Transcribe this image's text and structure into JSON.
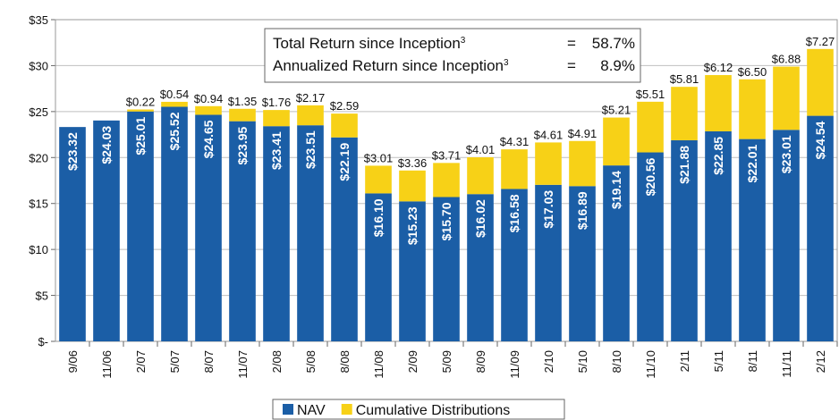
{
  "chart_data": {
    "type": "stacked-bar",
    "categories": [
      "9/06",
      "11/06",
      "2/07",
      "5/07",
      "8/07",
      "11/07",
      "2/08",
      "5/08",
      "8/08",
      "11/08",
      "2/09",
      "5/09",
      "8/09",
      "11/09",
      "2/10",
      "5/10",
      "8/10",
      "11/10",
      "2/11",
      "5/11",
      "8/11",
      "11/11",
      "2/12"
    ],
    "series": [
      {
        "name": "NAV",
        "color": "#1b5ea6",
        "values": [
          23.32,
          24.03,
          25.01,
          25.52,
          24.65,
          23.95,
          23.41,
          23.51,
          22.19,
          16.1,
          15.23,
          15.7,
          16.02,
          16.58,
          17.03,
          16.89,
          19.14,
          20.56,
          21.88,
          22.85,
          22.01,
          23.01,
          24.54
        ],
        "value_labels": [
          "$23.32",
          "$24.03",
          "$25.01",
          "$25.52",
          "$24.65",
          "$23.95",
          "$23.41",
          "$23.51",
          "$22.19",
          "$16.10",
          "$15.23",
          "$15.70",
          "$16.02",
          "$16.58",
          "$17.03",
          "$16.89",
          "$19.14",
          "$20.56",
          "$21.88",
          "$22.85",
          "$22.01",
          "$23.01",
          "$24.54"
        ]
      },
      {
        "name": "Cumulative Distributions",
        "color": "#f7d117",
        "values": [
          null,
          null,
          0.22,
          0.54,
          0.94,
          1.35,
          1.76,
          2.17,
          2.59,
          3.01,
          3.36,
          3.71,
          4.01,
          4.31,
          4.61,
          4.91,
          5.21,
          5.51,
          5.81,
          6.12,
          6.5,
          6.88,
          7.27
        ],
        "value_labels": [
          null,
          null,
          "$0.22",
          "$0.54",
          "$0.94",
          "$1.35",
          "$1.76",
          "$2.17",
          "$2.59",
          "$3.01",
          "$3.36",
          "$3.71",
          "$4.01",
          "$4.31",
          "$4.61",
          "$4.91",
          "$5.21",
          "$5.51",
          "$5.81",
          "$6.12",
          "$6.50",
          "$6.88",
          "$7.27"
        ]
      }
    ],
    "ylim": [
      0,
      35
    ],
    "yticks": [
      {
        "value": 0,
        "label": "$-"
      },
      {
        "value": 5,
        "label": "$5"
      },
      {
        "value": 10,
        "label": "$10"
      },
      {
        "value": 15,
        "label": "$15"
      },
      {
        "value": 20,
        "label": "$20"
      },
      {
        "value": 25,
        "label": "$25"
      },
      {
        "value": 30,
        "label": "$30"
      },
      {
        "value": 35,
        "label": "$35"
      }
    ],
    "grid": true,
    "legend": "bottom",
    "annotations": [
      {
        "text": "Total Return since Inception",
        "note": "3",
        "operator": "=",
        "value": "58.7%"
      },
      {
        "text": "Annualized Return since Inception",
        "note": "3",
        "operator": "=",
        "value": "8.9%"
      }
    ]
  }
}
